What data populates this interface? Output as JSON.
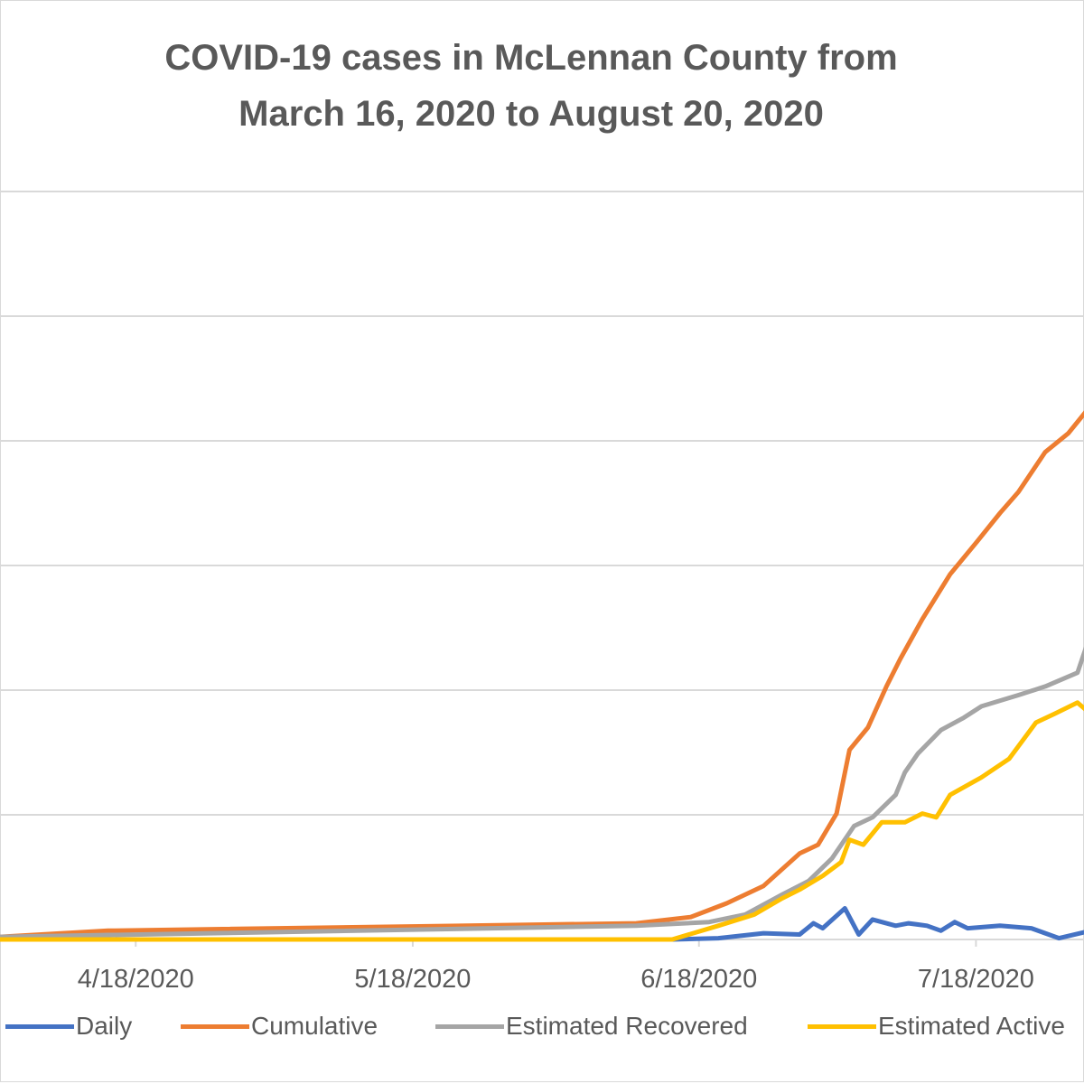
{
  "chart_data": {
    "type": "line",
    "title": "COVID-19 cases in McLennan County from March 16, 2020 to August 20, 2020",
    "title_lines": [
      "COVID-19 cases in McLennan County from",
      "March 16, 2020 to August 20, 2020"
    ],
    "xlabel": "",
    "ylabel": "",
    "x_unit": "days since 3/16/2020",
    "y_unit": "gridline intervals (y-axis labels not visible)",
    "xlim": [
      18.3,
      135.7
    ],
    "ylim": [
      0,
      6
    ],
    "grid": true,
    "x_ticks": [
      {
        "x": 33,
        "label": "4/18/2020"
      },
      {
        "x": 63,
        "label": "5/18/2020"
      },
      {
        "x": 94,
        "label": "6/18/2020"
      },
      {
        "x": 124,
        "label": "7/18/2020"
      }
    ],
    "legend_position": "bottom",
    "series": [
      {
        "name": "Daily",
        "color": "#4472C4",
        "points": [
          [
            18.2,
            0
          ],
          [
            91.1,
            0
          ],
          [
            96.1,
            0.01
          ],
          [
            101,
            0.05
          ],
          [
            104.9,
            0.04
          ],
          [
            106.4,
            0.13
          ],
          [
            107.4,
            0.09
          ],
          [
            109.8,
            0.25
          ],
          [
            111.3,
            0.04
          ],
          [
            112.8,
            0.16
          ],
          [
            115.3,
            0.11
          ],
          [
            116.7,
            0.13
          ],
          [
            118.7,
            0.11
          ],
          [
            120.2,
            0.07
          ],
          [
            121.7,
            0.14
          ],
          [
            123.1,
            0.09
          ],
          [
            126.6,
            0.11
          ],
          [
            130,
            0.09
          ],
          [
            133,
            0.01
          ],
          [
            136.4,
            0.07
          ]
        ]
      },
      {
        "name": "Cumulative",
        "color": "#ED7D31",
        "points": [
          [
            18.2,
            0.02
          ],
          [
            30,
            0.07
          ],
          [
            87.2,
            0.13
          ],
          [
            93.1,
            0.18
          ],
          [
            97,
            0.29
          ],
          [
            101,
            0.43
          ],
          [
            104.9,
            0.69
          ],
          [
            106.9,
            0.76
          ],
          [
            108.9,
            1.01
          ],
          [
            110.3,
            1.52
          ],
          [
            112.3,
            1.7
          ],
          [
            114.3,
            2.03
          ],
          [
            115.8,
            2.25
          ],
          [
            118.2,
            2.57
          ],
          [
            121.2,
            2.93
          ],
          [
            124.1,
            3.19
          ],
          [
            126.6,
            3.42
          ],
          [
            128.6,
            3.59
          ],
          [
            131.5,
            3.91
          ],
          [
            134,
            4.06
          ],
          [
            136.4,
            4.28
          ]
        ]
      },
      {
        "name": "Estimated Recovered",
        "color": "#A5A5A5",
        "points": [
          [
            18.2,
            0.02
          ],
          [
            87.2,
            0.11
          ],
          [
            95.1,
            0.14
          ],
          [
            99,
            0.2
          ],
          [
            103,
            0.36
          ],
          [
            105.9,
            0.47
          ],
          [
            108.4,
            0.65
          ],
          [
            110.8,
            0.91
          ],
          [
            112.8,
            0.98
          ],
          [
            115.3,
            1.16
          ],
          [
            116.3,
            1.34
          ],
          [
            117.7,
            1.49
          ],
          [
            120.2,
            1.68
          ],
          [
            122.7,
            1.78
          ],
          [
            124.6,
            1.87
          ],
          [
            128.6,
            1.96
          ],
          [
            131.5,
            2.03
          ],
          [
            135,
            2.14
          ],
          [
            136,
            2.36
          ]
        ]
      },
      {
        "name": "Estimated Active",
        "color": "#FFC000",
        "points": [
          [
            18.2,
            0
          ],
          [
            91.1,
            0
          ],
          [
            96.1,
            0.11
          ],
          [
            100,
            0.2
          ],
          [
            103,
            0.33
          ],
          [
            104.9,
            0.4
          ],
          [
            107.4,
            0.51
          ],
          [
            109.4,
            0.62
          ],
          [
            110.3,
            0.8
          ],
          [
            111.8,
            0.76
          ],
          [
            113.8,
            0.94
          ],
          [
            116.3,
            0.94
          ],
          [
            118.2,
            1.01
          ],
          [
            119.7,
            0.98
          ],
          [
            121.2,
            1.16
          ],
          [
            124.6,
            1.3
          ],
          [
            127.6,
            1.45
          ],
          [
            130.5,
            1.74
          ],
          [
            132.5,
            1.81
          ],
          [
            135,
            1.9
          ],
          [
            136.4,
            1.81
          ]
        ]
      }
    ]
  }
}
